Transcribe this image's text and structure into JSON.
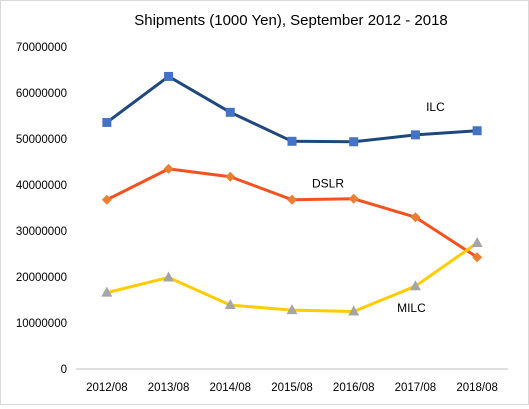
{
  "chart_data": {
    "type": "line",
    "title": "Shipments (1000 Yen), September 2012 - 2018",
    "xlabel": "",
    "ylabel": "",
    "categories": [
      "2012/08",
      "2013/08",
      "2014/08",
      "2015/08",
      "2016/08",
      "2017/08",
      "2018/08"
    ],
    "ylim": [
      0,
      70000000
    ],
    "yticks": [
      0,
      10000000,
      20000000,
      30000000,
      40000000,
      50000000,
      60000000,
      70000000
    ],
    "ytick_labels": [
      "0",
      "10000000",
      "20000000",
      "30000000",
      "40000000",
      "50000000",
      "60000000",
      "70000000"
    ],
    "grid": false,
    "legend": "none (series labelled directly on chart)",
    "series": [
      {
        "name": "ILC",
        "color": "#1f497d",
        "marker": "square",
        "marker_color": "#4472c4",
        "values": [
          53600000,
          63600000,
          55800000,
          49500000,
          49400000,
          50900000,
          51800000
        ]
      },
      {
        "name": "DSLR",
        "color": "#f4511e",
        "marker": "diamond",
        "marker_color": "#ed7d31",
        "values": [
          36800000,
          43500000,
          41800000,
          36800000,
          37000000,
          33000000,
          24300000
        ]
      },
      {
        "name": "MILC",
        "color": "#ffcc00",
        "marker": "triangle",
        "marker_color": "#a5a5a5",
        "values": [
          16600000,
          19900000,
          13900000,
          12800000,
          12500000,
          18000000,
          27400000
        ]
      }
    ]
  }
}
